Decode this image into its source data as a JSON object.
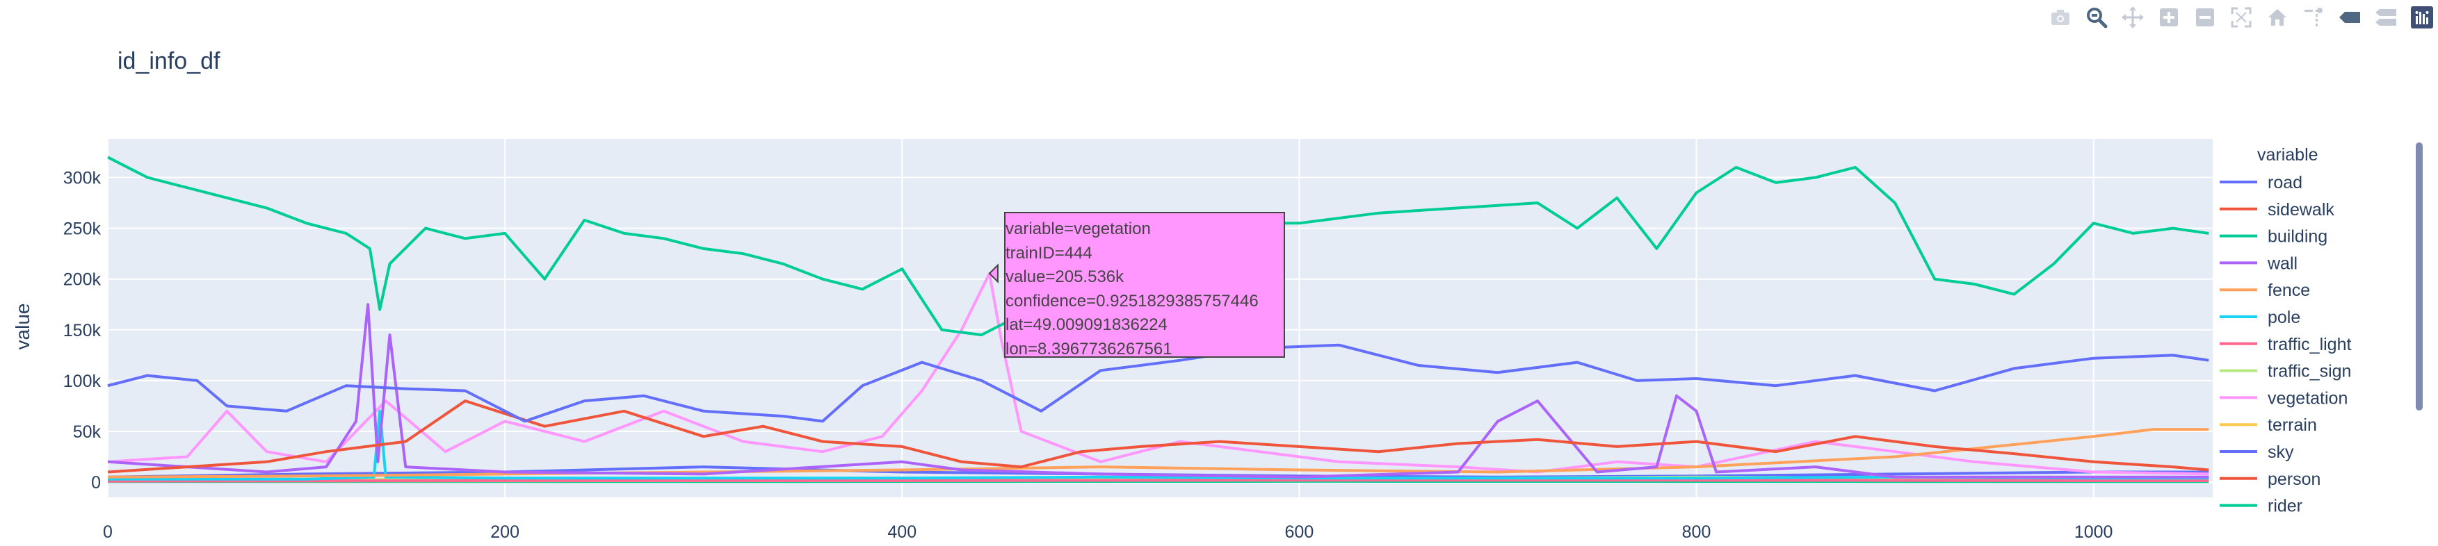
{
  "chart_data": {
    "type": "line",
    "title": "id_info_df",
    "xlabel": "",
    "ylabel": "value",
    "xlim": [
      0,
      1060
    ],
    "ylim": [
      -15000,
      338000
    ],
    "x_ticks": [
      0,
      200,
      400,
      600,
      800,
      1000
    ],
    "x_tick_labels": [
      "0",
      "200",
      "400",
      "600",
      "800",
      "1000"
    ],
    "y_ticks": [
      0,
      50000,
      100000,
      150000,
      200000,
      250000,
      300000
    ],
    "y_tick_labels": [
      "0",
      "50k",
      "100k",
      "150k",
      "200k",
      "250k",
      "300k"
    ],
    "grid": true,
    "legend": {
      "title": "variable",
      "placement": "right"
    },
    "series": [
      {
        "name": "road",
        "color": "#636efa",
        "points": [
          [
            0,
            95000
          ],
          [
            20,
            105000
          ],
          [
            45,
            100000
          ],
          [
            60,
            75000
          ],
          [
            90,
            70000
          ],
          [
            120,
            95000
          ],
          [
            150,
            92000
          ],
          [
            180,
            90000
          ],
          [
            210,
            60000
          ],
          [
            240,
            80000
          ],
          [
            270,
            85000
          ],
          [
            300,
            70000
          ],
          [
            340,
            65000
          ],
          [
            360,
            60000
          ],
          [
            380,
            95000
          ],
          [
            410,
            118000
          ],
          [
            440,
            100000
          ],
          [
            470,
            70000
          ],
          [
            500,
            110000
          ],
          [
            540,
            120000
          ],
          [
            580,
            132000
          ],
          [
            620,
            135000
          ],
          [
            660,
            115000
          ],
          [
            700,
            108000
          ],
          [
            740,
            118000
          ],
          [
            770,
            100000
          ],
          [
            800,
            102000
          ],
          [
            840,
            95000
          ],
          [
            880,
            105000
          ],
          [
            920,
            90000
          ],
          [
            960,
            112000
          ],
          [
            1000,
            122000
          ],
          [
            1040,
            125000
          ],
          [
            1058,
            120000
          ]
        ]
      },
      {
        "name": "sidewalk",
        "color": "#ef553b",
        "points": [
          [
            0,
            10000
          ],
          [
            40,
            15000
          ],
          [
            80,
            20000
          ],
          [
            110,
            30000
          ],
          [
            150,
            40000
          ],
          [
            180,
            80000
          ],
          [
            220,
            55000
          ],
          [
            260,
            70000
          ],
          [
            300,
            45000
          ],
          [
            330,
            55000
          ],
          [
            360,
            40000
          ],
          [
            400,
            35000
          ],
          [
            430,
            20000
          ],
          [
            460,
            15000
          ],
          [
            490,
            30000
          ],
          [
            520,
            35000
          ],
          [
            560,
            40000
          ],
          [
            600,
            35000
          ],
          [
            640,
            30000
          ],
          [
            680,
            38000
          ],
          [
            720,
            42000
          ],
          [
            760,
            35000
          ],
          [
            800,
            40000
          ],
          [
            840,
            30000
          ],
          [
            880,
            45000
          ],
          [
            920,
            35000
          ],
          [
            960,
            28000
          ],
          [
            1000,
            20000
          ],
          [
            1040,
            15000
          ],
          [
            1058,
            12000
          ]
        ]
      },
      {
        "name": "building",
        "color": "#00cc96",
        "points": [
          [
            0,
            320000
          ],
          [
            20,
            300000
          ],
          [
            40,
            290000
          ],
          [
            60,
            280000
          ],
          [
            80,
            270000
          ],
          [
            100,
            255000
          ],
          [
            120,
            245000
          ],
          [
            132,
            230000
          ],
          [
            137,
            170000
          ],
          [
            142,
            215000
          ],
          [
            160,
            250000
          ],
          [
            180,
            240000
          ],
          [
            200,
            245000
          ],
          [
            220,
            200000
          ],
          [
            240,
            258000
          ],
          [
            260,
            245000
          ],
          [
            280,
            240000
          ],
          [
            300,
            230000
          ],
          [
            320,
            225000
          ],
          [
            340,
            215000
          ],
          [
            360,
            200000
          ],
          [
            380,
            190000
          ],
          [
            400,
            210000
          ],
          [
            420,
            150000
          ],
          [
            440,
            145000
          ],
          [
            460,
            165000
          ],
          [
            480,
            255000
          ],
          [
            520,
            250000
          ],
          [
            560,
            255000
          ],
          [
            600,
            255000
          ],
          [
            640,
            265000
          ],
          [
            680,
            270000
          ],
          [
            720,
            275000
          ],
          [
            740,
            250000
          ],
          [
            760,
            280000
          ],
          [
            780,
            230000
          ],
          [
            800,
            285000
          ],
          [
            820,
            310000
          ],
          [
            840,
            295000
          ],
          [
            860,
            300000
          ],
          [
            880,
            310000
          ],
          [
            900,
            275000
          ],
          [
            920,
            200000
          ],
          [
            940,
            195000
          ],
          [
            960,
            185000
          ],
          [
            980,
            215000
          ],
          [
            1000,
            255000
          ],
          [
            1020,
            245000
          ],
          [
            1040,
            250000
          ],
          [
            1058,
            245000
          ]
        ]
      },
      {
        "name": "wall",
        "color": "#ab63fa",
        "points": [
          [
            0,
            20000
          ],
          [
            40,
            15000
          ],
          [
            80,
            10000
          ],
          [
            110,
            15000
          ],
          [
            125,
            60000
          ],
          [
            131,
            175000
          ],
          [
            136,
            20000
          ],
          [
            142,
            145000
          ],
          [
            150,
            15000
          ],
          [
            200,
            10000
          ],
          [
            300,
            8000
          ],
          [
            400,
            20000
          ],
          [
            430,
            12000
          ],
          [
            500,
            8000
          ],
          [
            600,
            5000
          ],
          [
            680,
            10000
          ],
          [
            700,
            60000
          ],
          [
            720,
            80000
          ],
          [
            735,
            45000
          ],
          [
            750,
            10000
          ],
          [
            780,
            15000
          ],
          [
            790,
            85000
          ],
          [
            800,
            70000
          ],
          [
            810,
            10000
          ],
          [
            860,
            15000
          ],
          [
            900,
            5000
          ],
          [
            1000,
            5000
          ],
          [
            1058,
            5000
          ]
        ]
      },
      {
        "name": "fence",
        "color": "#ffa15a",
        "points": [
          [
            0,
            5000
          ],
          [
            100,
            6000
          ],
          [
            200,
            8000
          ],
          [
            300,
            10000
          ],
          [
            400,
            12000
          ],
          [
            500,
            15000
          ],
          [
            600,
            12000
          ],
          [
            700,
            10000
          ],
          [
            800,
            15000
          ],
          [
            900,
            25000
          ],
          [
            950,
            35000
          ],
          [
            1000,
            45000
          ],
          [
            1030,
            52000
          ],
          [
            1058,
            52000
          ]
        ]
      },
      {
        "name": "pole",
        "color": "#19d3f3",
        "points": [
          [
            0,
            3000
          ],
          [
            100,
            3000
          ],
          [
            134,
            5000
          ],
          [
            137,
            70000
          ],
          [
            140,
            5000
          ],
          [
            200,
            4000
          ],
          [
            300,
            4000
          ],
          [
            400,
            4000
          ],
          [
            500,
            5000
          ],
          [
            600,
            4000
          ],
          [
            700,
            4000
          ],
          [
            800,
            4000
          ],
          [
            900,
            5000
          ],
          [
            1000,
            4000
          ],
          [
            1058,
            4000
          ]
        ]
      },
      {
        "name": "traffic_light",
        "color": "#ff6692",
        "points": [
          [
            0,
            1000
          ],
          [
            200,
            1500
          ],
          [
            400,
            1500
          ],
          [
            600,
            2000
          ],
          [
            800,
            2000
          ],
          [
            1000,
            1500
          ],
          [
            1058,
            1500
          ]
        ]
      },
      {
        "name": "traffic_sign",
        "color": "#b6e880",
        "points": [
          [
            0,
            2000
          ],
          [
            200,
            3000
          ],
          [
            400,
            4000
          ],
          [
            600,
            3000
          ],
          [
            800,
            5000
          ],
          [
            1000,
            3000
          ],
          [
            1058,
            3000
          ]
        ]
      },
      {
        "name": "vegetation",
        "color": "#ff97ff",
        "points": [
          [
            0,
            20000
          ],
          [
            40,
            25000
          ],
          [
            60,
            70000
          ],
          [
            80,
            30000
          ],
          [
            110,
            20000
          ],
          [
            140,
            80000
          ],
          [
            170,
            30000
          ],
          [
            200,
            60000
          ],
          [
            240,
            40000
          ],
          [
            280,
            70000
          ],
          [
            320,
            40000
          ],
          [
            360,
            30000
          ],
          [
            390,
            45000
          ],
          [
            410,
            90000
          ],
          [
            430,
            150000
          ],
          [
            444,
            205536
          ],
          [
            450,
            140000
          ],
          [
            460,
            50000
          ],
          [
            500,
            20000
          ],
          [
            540,
            40000
          ],
          [
            580,
            30000
          ],
          [
            620,
            20000
          ],
          [
            680,
            15000
          ],
          [
            720,
            10000
          ],
          [
            760,
            20000
          ],
          [
            800,
            15000
          ],
          [
            860,
            40000
          ],
          [
            900,
            30000
          ],
          [
            940,
            20000
          ],
          [
            1000,
            10000
          ],
          [
            1058,
            8000
          ]
        ]
      },
      {
        "name": "terrain",
        "color": "#fecb52",
        "points": [
          [
            0,
            1000
          ],
          [
            300,
            1500
          ],
          [
            600,
            2000
          ],
          [
            900,
            3000
          ],
          [
            1058,
            2000
          ]
        ]
      },
      {
        "name": "sky",
        "color": "#636efa",
        "points": [
          [
            0,
            5000
          ],
          [
            100,
            8000
          ],
          [
            200,
            10000
          ],
          [
            300,
            15000
          ],
          [
            400,
            10000
          ],
          [
            500,
            8000
          ],
          [
            600,
            6000
          ],
          [
            700,
            5000
          ],
          [
            800,
            6000
          ],
          [
            900,
            8000
          ],
          [
            1000,
            10000
          ],
          [
            1058,
            10000
          ]
        ]
      },
      {
        "name": "person",
        "color": "#ef553b",
        "points": [
          [
            0,
            1000
          ],
          [
            200,
            2000
          ],
          [
            400,
            1500
          ],
          [
            600,
            3000
          ],
          [
            800,
            2000
          ],
          [
            1000,
            1500
          ],
          [
            1058,
            1500
          ]
        ]
      },
      {
        "name": "rider",
        "color": "#00cc96",
        "points": [
          [
            0,
            500
          ],
          [
            300,
            500
          ],
          [
            600,
            800
          ],
          [
            900,
            600
          ],
          [
            1058,
            500
          ]
        ]
      }
    ],
    "hover": {
      "lines": [
        "variable=vegetation",
        "trainID=444",
        "value=205.536k",
        "confidence=0.9251829385757446",
        "lat=49.009091836224",
        "lon=8.3967736267561"
      ],
      "x": 444,
      "y": 205536,
      "color": "#ff97ff"
    }
  },
  "modebar": {
    "icons": [
      "camera-icon",
      "zoom-icon",
      "pan-icon",
      "zoom-in-icon",
      "zoom-out-icon",
      "autoscale-icon",
      "home-icon",
      "spike-lines-icon",
      "hover-closest-icon",
      "hover-compare-icon",
      "plotly-logo-icon"
    ]
  }
}
